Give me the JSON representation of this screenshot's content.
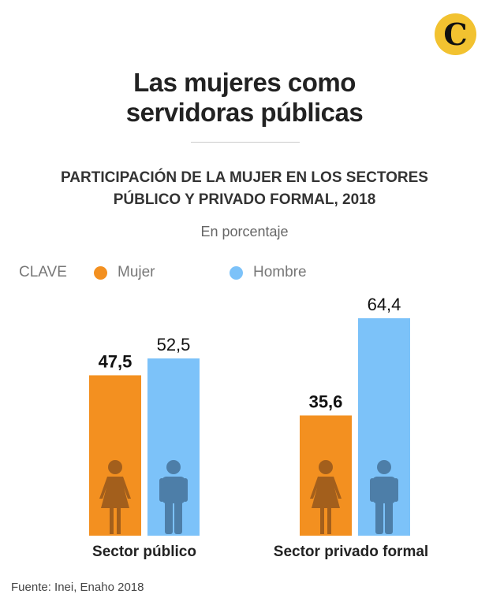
{
  "brand": {
    "logo_text": "C"
  },
  "title_line1": "Las mujeres como",
  "title_line2": "servidoras públicas",
  "chart_data": {
    "type": "bar",
    "title": "PARTICIPACIÓN DE LA MUJER EN LOS SECTORES PÚBLICO Y PRIVADO FORMAL, 2018",
    "title_line1": "PARTICIPACIÓN DE LA MUJER EN LOS SECTORES",
    "title_line2": "PÚBLICO Y PRIVADO FORMAL, 2018",
    "subtitle": "En porcentaje",
    "legend_label": "CLAVE",
    "categories": [
      "Sector público",
      "Sector privado formal"
    ],
    "series": [
      {
        "name": "Mujer",
        "color": "#f39020",
        "icon_color": "#a35f1c",
        "icon": "woman-icon",
        "values": [
          47.5,
          35.6
        ],
        "labels": [
          "47,5",
          "35,6"
        ]
      },
      {
        "name": "Hombre",
        "color": "#7cc2f9",
        "icon_color": "#4d7ea8",
        "icon": "man-icon",
        "values": [
          52.5,
          64.4
        ],
        "labels": [
          "52,5",
          "64,4"
        ]
      }
    ],
    "ylim": [
      0,
      64.4
    ],
    "grid": false,
    "legend_position": "top-left"
  },
  "source": "Fuente: Inei, Enaho 2018"
}
